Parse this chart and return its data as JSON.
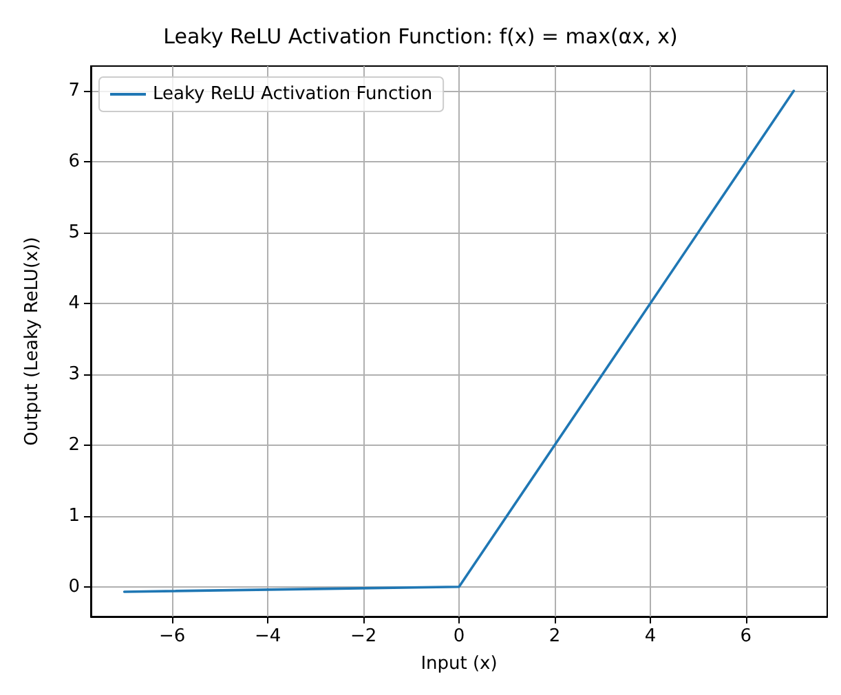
{
  "chart_data": {
    "type": "line",
    "title": "Leaky ReLU Activation Function: f(x) = max(αx, x)",
    "xlabel": "Input (x)",
    "ylabel": "Output (Leaky ReLU(x))",
    "series": [
      {
        "name": "Leaky ReLU Activation Function",
        "color": "#1f77b4",
        "x": [
          -7,
          0,
          7
        ],
        "values": [
          -0.07,
          0,
          7
        ]
      }
    ],
    "xlim": [
      -7.7,
      7.7
    ],
    "xticks": [
      -6,
      -4,
      -2,
      0,
      2,
      4,
      6
    ],
    "ylim": [
      -0.42,
      7.35
    ],
    "yticks": [
      0,
      1,
      2,
      3,
      4,
      5,
      6,
      7
    ],
    "grid": true,
    "legend": "top left",
    "marker": "none",
    "line_style": "solid"
  }
}
